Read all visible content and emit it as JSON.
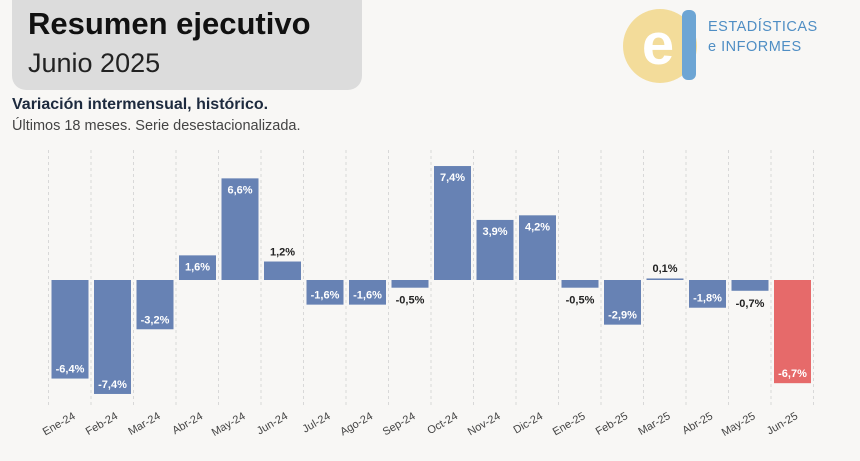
{
  "header": {
    "title": "Resumen ejecutivo",
    "period": "Junio 2025"
  },
  "logo": {
    "mark_letter": "e",
    "line1": "ESTADÍSTICAS",
    "line2": "e INFORMES",
    "colors": {
      "yellow": "#f3dc9a",
      "blue": "#6da5d4",
      "text": "#4f8ec4"
    }
  },
  "chart_data": {
    "type": "bar",
    "title": "Variación intermensual, histórico.",
    "subtitle": "Últimos 18 meses. Serie desestacionalizada.",
    "categories": [
      "Ene-24",
      "Feb-24",
      "Mar-24",
      "Abr-24",
      "May-24",
      "Jun-24",
      "Jul-24",
      "Ago-24",
      "Sep-24",
      "Oct-24",
      "Nov-24",
      "Dic-24",
      "Ene-25",
      "Feb-25",
      "Mar-25",
      "Abr-25",
      "May-25",
      "Jun-25"
    ],
    "values": [
      -6.4,
      -7.4,
      -3.2,
      1.6,
      6.6,
      1.2,
      -1.6,
      -1.6,
      -0.5,
      7.4,
      3.9,
      4.2,
      -0.5,
      -2.9,
      0.1,
      -1.8,
      -0.7,
      -6.7
    ],
    "data_labels": [
      "-6,4%",
      "-7,4%",
      "-3,2%",
      "1,6%",
      "6,6%",
      "1,2%",
      "-1,6%",
      "-1,6%",
      "-0,5%",
      "7,4%",
      "3,9%",
      "4,2%",
      "-0,5%",
      "-2,9%",
      "0,1%",
      "-1,8%",
      "-0,7%",
      "-6,7%"
    ],
    "ylim": [
      -7.4,
      7.4
    ],
    "grid": "vertical",
    "colors": {
      "bar": "#6782b4",
      "highlight": "#e66a6a",
      "highlight_index": 17
    }
  }
}
